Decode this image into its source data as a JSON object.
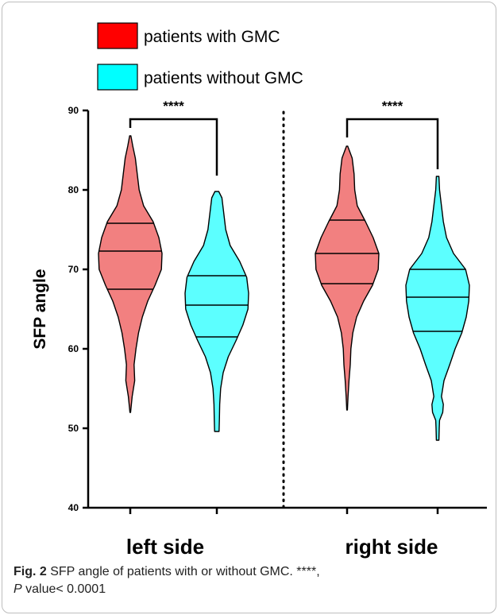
{
  "chart_data": {
    "type": "violin",
    "ylabel": "SFP angle",
    "ylim": [
      40,
      90
    ],
    "yticks": [
      40,
      50,
      60,
      70,
      80,
      90
    ],
    "grid": false,
    "legend_position": "top-left",
    "groups": [
      "left side",
      "right side"
    ],
    "series": [
      {
        "name": "patients with GMC",
        "color": "#FF0000",
        "fill": "#F28080",
        "violins": [
          {
            "group": "left side",
            "min": 52,
            "max": 86.8,
            "q1": 67.5,
            "median": 72.3,
            "q3": 75.8,
            "profile": [
              [
                52,
                0.01
              ],
              [
                54,
                0.06
              ],
              [
                56,
                0.14
              ],
              [
                58,
                0.12
              ],
              [
                60,
                0.18
              ],
              [
                62,
                0.26
              ],
              [
                64,
                0.38
              ],
              [
                66,
                0.55
              ],
              [
                68,
                0.78
              ],
              [
                70,
                0.98
              ],
              [
                72,
                1.0
              ],
              [
                74,
                0.9
              ],
              [
                76,
                0.72
              ],
              [
                78,
                0.42
              ],
              [
                80,
                0.28
              ],
              [
                82,
                0.22
              ],
              [
                84,
                0.16
              ],
              [
                85.5,
                0.08
              ],
              [
                86.8,
                0.02
              ]
            ]
          },
          {
            "group": "right side",
            "min": 52.3,
            "max": 85.5,
            "q1": 68.2,
            "median": 72.0,
            "q3": 76.2,
            "profile": [
              [
                52.3,
                0.01
              ],
              [
                54,
                0.03
              ],
              [
                56,
                0.06
              ],
              [
                58,
                0.1
              ],
              [
                60,
                0.12
              ],
              [
                62,
                0.18
              ],
              [
                64,
                0.3
              ],
              [
                66,
                0.52
              ],
              [
                68,
                0.8
              ],
              [
                70,
                0.98
              ],
              [
                72,
                1.0
              ],
              [
                74,
                0.82
              ],
              [
                76,
                0.58
              ],
              [
                78,
                0.32
              ],
              [
                80,
                0.24
              ],
              [
                82,
                0.22
              ],
              [
                84,
                0.16
              ],
              [
                85.5,
                0.02
              ]
            ]
          }
        ]
      },
      {
        "name": "patients without GMC",
        "color": "#00FFFF",
        "fill": "#5CFFFF",
        "violins": [
          {
            "group": "left side",
            "min": 49.6,
            "max": 79.8,
            "q1": 61.5,
            "median": 65.5,
            "q3": 69.2,
            "profile": [
              [
                49.6,
                0.07
              ],
              [
                51,
                0.08
              ],
              [
                53,
                0.09
              ],
              [
                55,
                0.12
              ],
              [
                57,
                0.2
              ],
              [
                59,
                0.36
              ],
              [
                61,
                0.6
              ],
              [
                63,
                0.82
              ],
              [
                65,
                0.98
              ],
              [
                67,
                1.0
              ],
              [
                69,
                0.94
              ],
              [
                71,
                0.72
              ],
              [
                73,
                0.42
              ],
              [
                75,
                0.28
              ],
              [
                77,
                0.22
              ],
              [
                79,
                0.16
              ],
              [
                79.8,
                0.06
              ]
            ]
          },
          {
            "group": "right side",
            "min": 48.5,
            "max": 81.7,
            "q1": 62.2,
            "median": 66.5,
            "q3": 70.0,
            "profile": [
              [
                48.5,
                0.04
              ],
              [
                50,
                0.05
              ],
              [
                51,
                0.06
              ],
              [
                52,
                0.16
              ],
              [
                53,
                0.18
              ],
              [
                54,
                0.12
              ],
              [
                56,
                0.2
              ],
              [
                58,
                0.38
              ],
              [
                60,
                0.55
              ],
              [
                62,
                0.76
              ],
              [
                64,
                0.9
              ],
              [
                66,
                0.98
              ],
              [
                68,
                1.0
              ],
              [
                70,
                0.88
              ],
              [
                72,
                0.5
              ],
              [
                74,
                0.28
              ],
              [
                76,
                0.18
              ],
              [
                78,
                0.12
              ],
              [
                80,
                0.06
              ],
              [
                81.7,
                0.04
              ]
            ]
          }
        ]
      }
    ],
    "annotations": [
      {
        "text": "****",
        "group": "left side"
      },
      {
        "text": "****",
        "group": "right side"
      }
    ]
  },
  "caption": {
    "label": "Fig. 2",
    "text": " SFP angle of patients with or without GMC. ****,",
    "p_letter": "P",
    "p_text": " value< 0.0001"
  }
}
